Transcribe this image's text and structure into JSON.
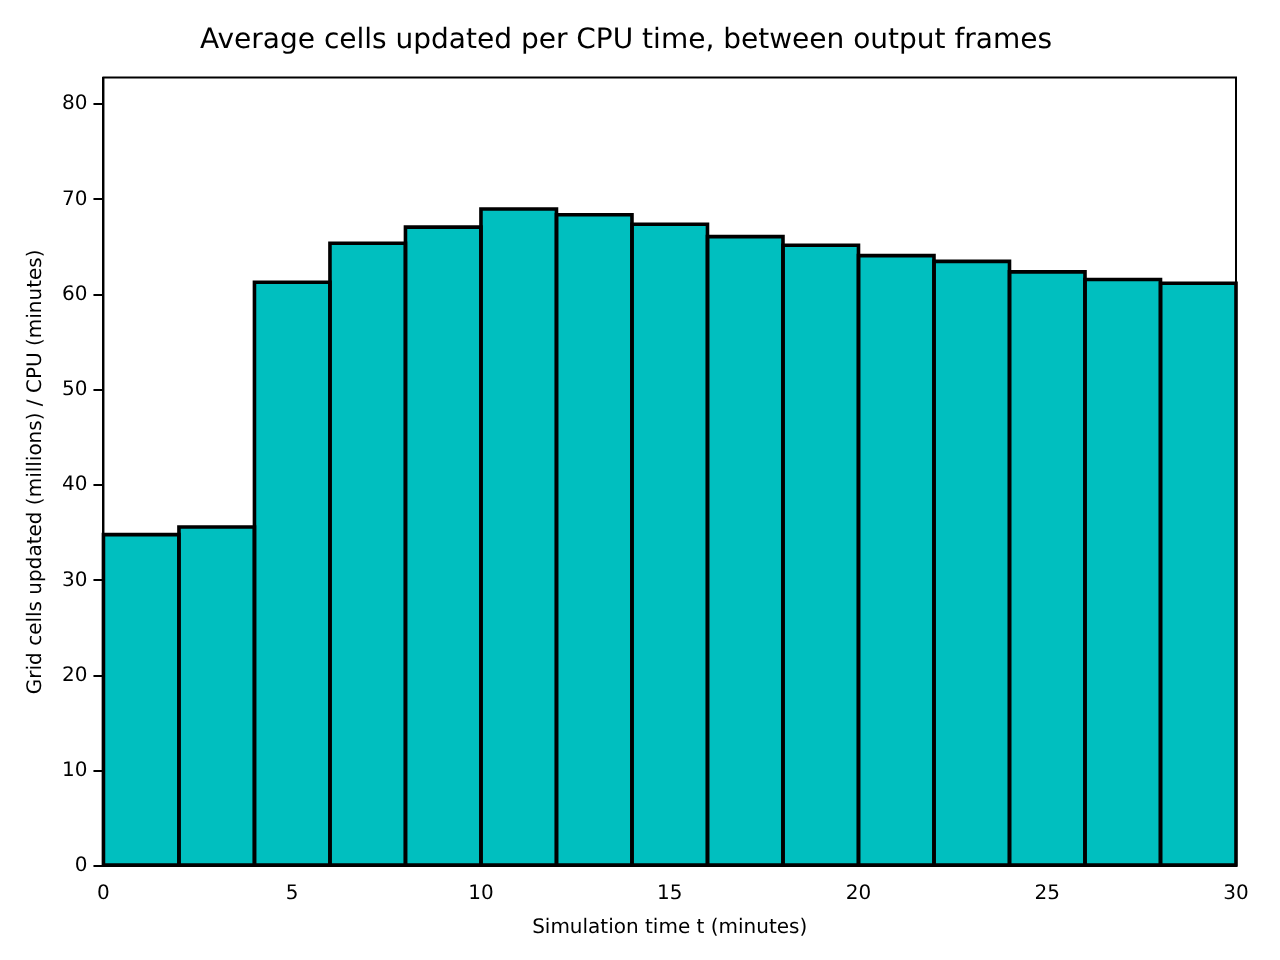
{
  "chart_data": {
    "type": "histogram",
    "title": "Average cells updated per CPU time, between output frames",
    "xlabel": "Simulation time t (minutes)",
    "ylabel": "Grid cells updated (millions) / CPU (minutes)",
    "bins": [
      0,
      2,
      4,
      6,
      8,
      10,
      12,
      14,
      16,
      18,
      20,
      22,
      24,
      26,
      28,
      30
    ],
    "values": [
      34.8,
      35.6,
      61.3,
      65.4,
      67.1,
      69.0,
      68.4,
      67.4,
      66.1,
      65.2,
      64.1,
      63.5,
      62.4,
      61.6,
      61.2
    ],
    "color": "#00bfbf",
    "xlim": [
      0,
      30
    ],
    "xticks": [
      0,
      5,
      10,
      15,
      20,
      25,
      30
    ],
    "ylim": [
      0,
      82.8
    ],
    "yticks": [
      0,
      10,
      20,
      30,
      40,
      50,
      60,
      70,
      80
    ],
    "grid": false,
    "legend": false
  }
}
